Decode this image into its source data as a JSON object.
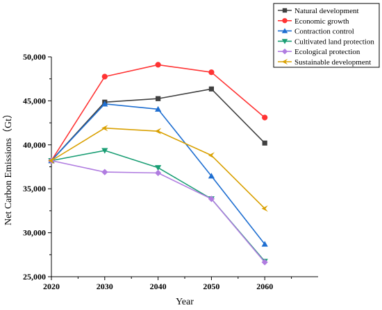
{
  "chart_data": {
    "type": "line",
    "title": "",
    "xlabel": "Year",
    "ylabel": "Net Carbon Emissions（Gt）",
    "x": [
      2020,
      2030,
      2040,
      2050,
      2060
    ],
    "x_tick_labels": [
      "2020",
      "2030",
      "2040",
      "2050",
      "2060"
    ],
    "xlim": [
      2020,
      2070
    ],
    "ylim": [
      25000,
      50000
    ],
    "y_ticks": [
      25000,
      30000,
      35000,
      40000,
      45000,
      50000
    ],
    "y_tick_labels": [
      "25,000",
      "30,000",
      "35,000",
      "40,000",
      "45,000",
      "50,000"
    ],
    "grid": false,
    "legend_position": "top-right",
    "series": [
      {
        "name": "Natural development",
        "color": "#404040",
        "marker": "square",
        "values": [
          38200,
          44850,
          45250,
          46350,
          40200
        ]
      },
      {
        "name": "Economic growth",
        "color": "#ff3333",
        "marker": "circle",
        "values": [
          38200,
          47750,
          49100,
          48250,
          43100
        ]
      },
      {
        "name": "Contraction control",
        "color": "#1f6fd1",
        "marker": "triangle-up",
        "values": [
          38200,
          44650,
          44050,
          36450,
          28700
        ]
      },
      {
        "name": "Cultivated land protection",
        "color": "#1a9e74",
        "marker": "triangle-down",
        "values": [
          38200,
          39350,
          37400,
          33850,
          26750
        ]
      },
      {
        "name": "Ecological protection",
        "color": "#b07ce0",
        "marker": "diamond",
        "values": [
          38200,
          36900,
          36800,
          33850,
          26650
        ]
      },
      {
        "name": "Sustainable development",
        "color": "#d9a000",
        "marker": "chevron-left",
        "values": [
          38200,
          41900,
          41550,
          38800,
          32750
        ]
      }
    ]
  }
}
